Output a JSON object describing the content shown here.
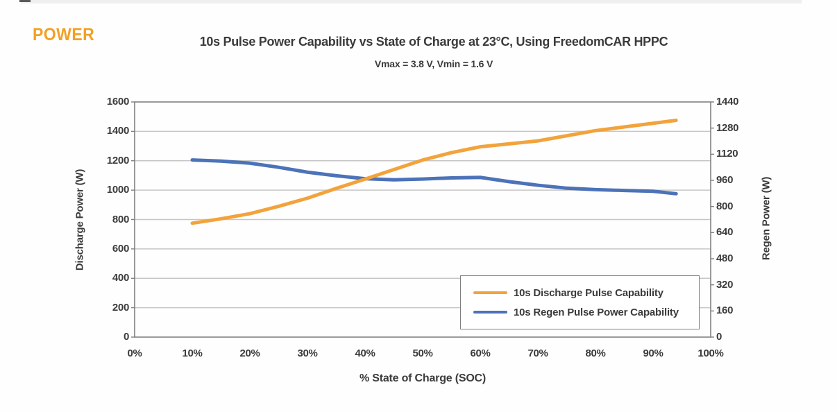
{
  "page": {
    "logo_text": "POWER",
    "logo_color": "#F2A024"
  },
  "chart_data": {
    "type": "line",
    "title": "10s Pulse Power Capability vs State of Charge at 23°C, Using FreedomCAR HPPC",
    "subtitle": "Vmax = 3.8 V, Vmin = 1.6 V",
    "xlabel": "% State of Charge (SOC)",
    "x_tick_labels": [
      "0%",
      "10%",
      "20%",
      "30%",
      "40%",
      "50%",
      "60%",
      "70%",
      "80%",
      "90%",
      "100%"
    ],
    "x_range_percent": [
      0,
      100
    ],
    "axes": {
      "left": {
        "label": "Discharge Power (W)",
        "min": 0,
        "max": 1600,
        "step": 200
      },
      "right": {
        "label": "Regen Power (W)",
        "min": 0,
        "max": 1440,
        "step": 160
      }
    },
    "grid": "horizontal",
    "legend_position": "inside-bottom-right",
    "colors": {
      "grid": "#c6c6c6",
      "axis_border": "#808080",
      "text": "#3b3b3b",
      "discharge": "#f2a33c",
      "regen": "#4c72b8"
    },
    "series": [
      {
        "name": "10s Discharge Pulse Capability",
        "color": "#f2a33c",
        "axis": "left",
        "x_percent": [
          10,
          15,
          20,
          25,
          30,
          35,
          40,
          45,
          50,
          55,
          60,
          65,
          70,
          75,
          80,
          85,
          90,
          94
        ],
        "y_watts": [
          775,
          805,
          840,
          890,
          945,
          1012,
          1075,
          1140,
          1205,
          1255,
          1295,
          1315,
          1335,
          1370,
          1405,
          1430,
          1455,
          1475
        ]
      },
      {
        "name": "10s Regen Pulse Power Capability",
        "color": "#4c72b8",
        "axis": "right",
        "x_percent": [
          10,
          15,
          20,
          25,
          30,
          35,
          40,
          45,
          50,
          55,
          60,
          65,
          70,
          75,
          80,
          85,
          90,
          94
        ],
        "y_watts": [
          1085,
          1078,
          1065,
          1040,
          1010,
          988,
          970,
          963,
          968,
          975,
          978,
          952,
          930,
          912,
          903,
          898,
          893,
          878
        ]
      }
    ]
  }
}
